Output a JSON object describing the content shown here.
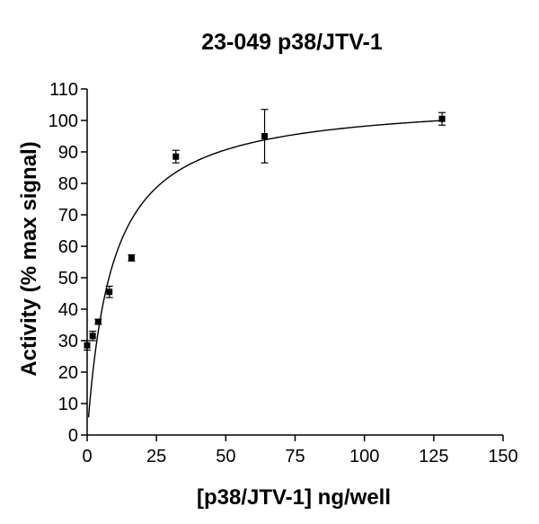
{
  "chart_data": {
    "type": "scatter",
    "title": "23-049 p38/JTV-1",
    "xlabel": "[p38/JTV-1] ng/well",
    "ylabel": "Activity (% max signal)",
    "xlim": [
      0,
      150
    ],
    "ylim": [
      0,
      110
    ],
    "xticks": [
      0,
      25,
      50,
      75,
      100,
      125,
      150
    ],
    "yticks": [
      0,
      10,
      20,
      30,
      40,
      50,
      60,
      70,
      80,
      90,
      100,
      110
    ],
    "grid": false,
    "legend": "none",
    "colors": {
      "marks": "#000000",
      "background": "#ffffff"
    },
    "points": [
      {
        "x": 0,
        "y": 28.5,
        "err": 1.5
      },
      {
        "x": 2,
        "y": 31.5,
        "err": 1.5
      },
      {
        "x": 4,
        "y": 36,
        "err": 0.8
      },
      {
        "x": 8,
        "y": 45.5,
        "err": 1.8
      },
      {
        "x": 16,
        "y": 56.3,
        "err": 1.0
      },
      {
        "x": 32,
        "y": 88.5,
        "err": 2.0
      },
      {
        "x": 64,
        "y": 95,
        "err": 8.5
      },
      {
        "x": 128,
        "y": 100.5,
        "err": 2.0
      }
    ],
    "fit": {
      "model": "hyperbolic",
      "bmax": 107,
      "kd": 9,
      "x_range": [
        0.5,
        128
      ]
    }
  }
}
